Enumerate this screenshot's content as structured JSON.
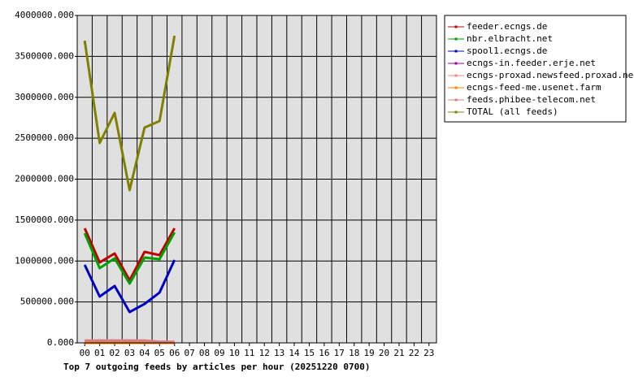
{
  "chart_data": {
    "type": "line",
    "title": "Top 7 outgoing feeds by articles per hour (20251220 0700)",
    "categories": [
      "00",
      "01",
      "02",
      "03",
      "04",
      "05",
      "06",
      "07",
      "08",
      "09",
      "10",
      "11",
      "12",
      "13",
      "14",
      "15",
      "16",
      "17",
      "18",
      "19",
      "20",
      "21",
      "22",
      "23"
    ],
    "ylim": [
      0,
      4000000
    ],
    "yticks": [
      {
        "value": 0,
        "label": "0.000"
      },
      {
        "value": 500000,
        "label": "500000.000"
      },
      {
        "value": 1000000,
        "label": "1000000.000"
      },
      {
        "value": 1500000,
        "label": "1500000.000"
      },
      {
        "value": 2000000,
        "label": "2000000.000"
      },
      {
        "value": 2500000,
        "label": "2500000.000"
      },
      {
        "value": 3000000,
        "label": "3000000.000"
      },
      {
        "value": 3500000,
        "label": "3500000.000"
      },
      {
        "value": 4000000,
        "label": "4000000.000"
      }
    ],
    "grid": true,
    "legend": "right",
    "series": [
      {
        "name": "feeder.ecngs.de",
        "color": "#c00000",
        "values": [
          1400000,
          983000,
          1092000,
          764000,
          1112000,
          1072000,
          1400000,
          null,
          null,
          null,
          null,
          null,
          null,
          null,
          null,
          null,
          null,
          null,
          null,
          null,
          null,
          null,
          null,
          null
        ]
      },
      {
        "name": "nbr.elbracht.net",
        "color": "#00a000",
        "values": [
          1340000,
          913000,
          1032000,
          725000,
          1042000,
          1022000,
          1350000,
          null,
          null,
          null,
          null,
          null,
          null,
          null,
          null,
          null,
          null,
          null,
          null,
          null,
          null,
          null,
          null,
          null
        ]
      },
      {
        "name": "spool1.ecngs.de",
        "color": "#0000c0",
        "values": [
          953000,
          566000,
          695000,
          377000,
          476000,
          615000,
          1012000,
          null,
          null,
          null,
          null,
          null,
          null,
          null,
          null,
          null,
          null,
          null,
          null,
          null,
          null,
          null,
          null,
          null
        ]
      },
      {
        "name": "ecngs-in.feeder.erje.net",
        "color": "#a000a0",
        "values": [
          0,
          0,
          0,
          0,
          0,
          0,
          0,
          null,
          null,
          null,
          null,
          null,
          null,
          null,
          null,
          null,
          null,
          null,
          null,
          null,
          null,
          null,
          null,
          null
        ]
      },
      {
        "name": "ecngs-proxad.newsfeed.proxad.net",
        "color": "#ff8080",
        "values": [
          30000,
          30000,
          30000,
          30000,
          30000,
          15000,
          15000,
          null,
          null,
          null,
          null,
          null,
          null,
          null,
          null,
          null,
          null,
          null,
          null,
          null,
          null,
          null,
          null,
          null
        ]
      },
      {
        "name": "ecngs-feed-me.usenet.farm",
        "color": "#ff8000",
        "values": [
          0,
          0,
          0,
          0,
          0,
          0,
          0,
          null,
          null,
          null,
          null,
          null,
          null,
          null,
          null,
          null,
          null,
          null,
          null,
          null,
          null,
          null,
          null,
          null
        ]
      },
      {
        "name": "feeds.phibee-telecom.net",
        "color": "#d08080",
        "values": [
          25000,
          25000,
          25000,
          25000,
          25000,
          10000,
          10000,
          null,
          null,
          null,
          null,
          null,
          null,
          null,
          null,
          null,
          null,
          null,
          null,
          null,
          null,
          null,
          null,
          null
        ]
      },
      {
        "name": "TOTAL (all feeds)",
        "color": "#808000",
        "values": [
          3692000,
          2442000,
          2809000,
          1866000,
          2630000,
          2710000,
          3752000,
          null,
          null,
          null,
          null,
          null,
          null,
          null,
          null,
          null,
          null,
          null,
          null,
          null,
          null,
          null,
          null,
          null
        ]
      }
    ]
  }
}
